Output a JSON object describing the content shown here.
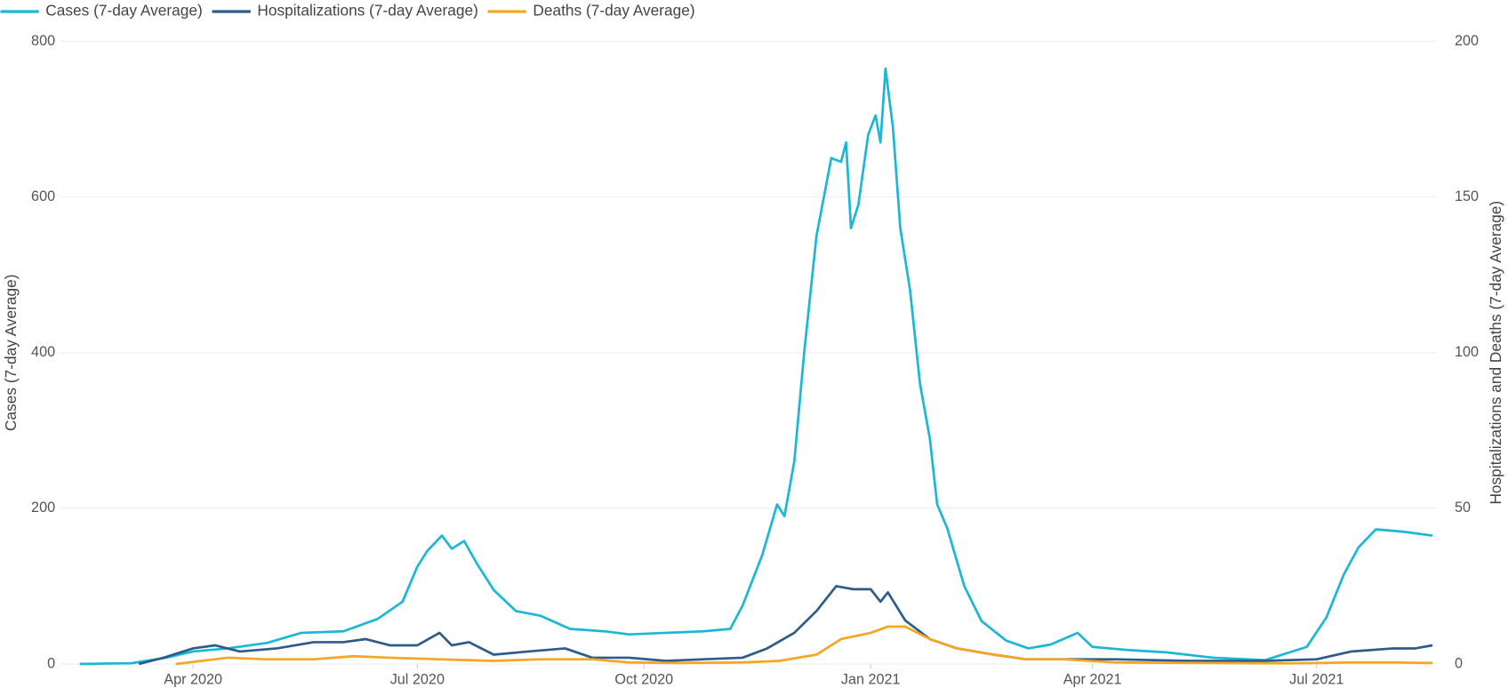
{
  "chart_data": {
    "type": "line",
    "y_label": "Cases (7-day Average)",
    "y2_label": "Hospitalizations and Deaths (7-day Average)",
    "xlim": [
      "2020-02-07",
      "2021-08-19"
    ],
    "xticks": [
      {
        "value": "2020-04-01",
        "label": "Apr 2020"
      },
      {
        "value": "2020-07-01",
        "label": "Jul 2020"
      },
      {
        "value": "2020-10-01",
        "label": "Oct 2020"
      },
      {
        "value": "2021-01-01",
        "label": "Jan 2021"
      },
      {
        "value": "2021-04-01",
        "label": "Apr 2021"
      },
      {
        "value": "2021-07-01",
        "label": "Jul 2021"
      }
    ],
    "ylim": [
      0,
      800
    ],
    "yticks": [
      0,
      200,
      400,
      600,
      800
    ],
    "y2lim": [
      0,
      200
    ],
    "y2ticks": [
      0,
      50,
      100,
      150,
      200
    ],
    "grid": true,
    "legend": "top-left",
    "series": [
      {
        "name": "Cases (7-day Average)",
        "color": "#1ab8d6",
        "axis": "y",
        "x": [
          "2020-02-15",
          "2020-03-07",
          "2020-03-21",
          "2020-04-01",
          "2020-04-15",
          "2020-05-01",
          "2020-05-15",
          "2020-06-01",
          "2020-06-15",
          "2020-06-25",
          "2020-07-01",
          "2020-07-05",
          "2020-07-11",
          "2020-07-15",
          "2020-07-20",
          "2020-07-25",
          "2020-08-01",
          "2020-08-10",
          "2020-08-20",
          "2020-09-01",
          "2020-09-15",
          "2020-09-25",
          "2020-10-10",
          "2020-10-25",
          "2020-11-05",
          "2020-11-10",
          "2020-11-18",
          "2020-11-24",
          "2020-11-27",
          "2020-12-01",
          "2020-12-05",
          "2020-12-10",
          "2020-12-16",
          "2020-12-20",
          "2020-12-22",
          "2020-12-24",
          "2020-12-27",
          "2020-12-31",
          "2021-01-03",
          "2021-01-05",
          "2021-01-07",
          "2021-01-10",
          "2021-01-13",
          "2021-01-17",
          "2021-01-21",
          "2021-01-25",
          "2021-01-28",
          "2021-02-01",
          "2021-02-08",
          "2021-02-15",
          "2021-02-25",
          "2021-03-06",
          "2021-03-15",
          "2021-03-26",
          "2021-04-01",
          "2021-04-15",
          "2021-05-01",
          "2021-05-20",
          "2021-06-10",
          "2021-06-27",
          "2021-07-05",
          "2021-07-12",
          "2021-07-18",
          "2021-07-25",
          "2021-08-05",
          "2021-08-17"
        ],
        "values": [
          0,
          1,
          8,
          16,
          20,
          27,
          40,
          42,
          58,
          80,
          125,
          145,
          165,
          148,
          158,
          130,
          95,
          68,
          62,
          45,
          42,
          38,
          40,
          42,
          45,
          75,
          140,
          205,
          190,
          260,
          400,
          550,
          650,
          645,
          670,
          560,
          590,
          680,
          705,
          670,
          765,
          690,
          560,
          480,
          360,
          290,
          205,
          175,
          100,
          55,
          30,
          20,
          25,
          40,
          22,
          18,
          15,
          8,
          5,
          22,
          60,
          115,
          150,
          173,
          170,
          165
        ]
      },
      {
        "name": "Hospitalizations (7-day Average)",
        "color": "#2e5c8a",
        "axis": "y2",
        "x": [
          "2020-03-10",
          "2020-03-20",
          "2020-04-01",
          "2020-04-10",
          "2020-04-20",
          "2020-05-05",
          "2020-05-20",
          "2020-06-01",
          "2020-06-10",
          "2020-06-20",
          "2020-07-01",
          "2020-07-10",
          "2020-07-15",
          "2020-07-22",
          "2020-08-01",
          "2020-08-15",
          "2020-08-30",
          "2020-09-10",
          "2020-09-25",
          "2020-10-10",
          "2020-10-25",
          "2020-11-10",
          "2020-11-20",
          "2020-12-01",
          "2020-12-10",
          "2020-12-18",
          "2020-12-25",
          "2021-01-01",
          "2021-01-05",
          "2021-01-08",
          "2021-01-15",
          "2021-01-25",
          "2021-02-05",
          "2021-02-20",
          "2021-03-05",
          "2021-03-20",
          "2021-04-10",
          "2021-05-10",
          "2021-06-10",
          "2021-07-01",
          "2021-07-15",
          "2021-08-01",
          "2021-08-10",
          "2021-08-17"
        ],
        "values": [
          0,
          2,
          5,
          6,
          4,
          5,
          7,
          7,
          8,
          6,
          6,
          10,
          6,
          7,
          3,
          4,
          5,
          2,
          2,
          1,
          1.5,
          2,
          5,
          10,
          17,
          25,
          24,
          24,
          20,
          23,
          14,
          8,
          5,
          3,
          1.5,
          1.5,
          1.5,
          1,
          1,
          1.5,
          4,
          5,
          5,
          6
        ]
      },
      {
        "name": "Deaths (7-day Average)",
        "color": "#f5a623",
        "axis": "y2",
        "x": [
          "2020-03-25",
          "2020-04-15",
          "2020-05-01",
          "2020-05-20",
          "2020-06-05",
          "2020-06-20",
          "2020-07-10",
          "2020-08-01",
          "2020-08-20",
          "2020-09-10",
          "2020-09-25",
          "2020-10-15",
          "2020-11-10",
          "2020-11-25",
          "2020-12-10",
          "2020-12-20",
          "2021-01-01",
          "2021-01-08",
          "2021-01-15",
          "2021-01-25",
          "2021-02-05",
          "2021-02-20",
          "2021-03-05",
          "2021-03-20",
          "2021-04-10",
          "2021-05-15",
          "2021-06-20",
          "2021-07-15",
          "2021-08-01",
          "2021-08-17"
        ],
        "values": [
          0,
          2,
          1.5,
          1.5,
          2.5,
          2,
          1.5,
          1,
          1.5,
          1.5,
          0.5,
          0.3,
          0.5,
          1,
          3,
          8,
          10,
          12,
          12,
          8,
          5,
          3,
          1.5,
          1.5,
          0.5,
          0.3,
          0.2,
          0.5,
          0.5,
          0.3
        ]
      }
    ]
  }
}
